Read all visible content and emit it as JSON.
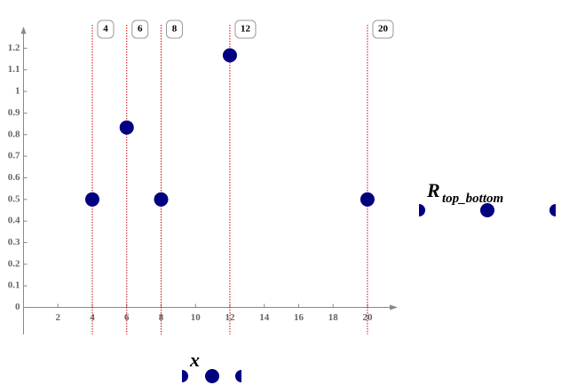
{
  "chart_data": {
    "type": "scatter",
    "xlabel": "x",
    "ylabel": {
      "base": "R",
      "subscript": "top_bottom"
    },
    "x": [
      4,
      6,
      8,
      12,
      20
    ],
    "series": [
      {
        "name": "R_top_bottom",
        "color": "#000080",
        "values": [
          0.5,
          0.833,
          0.5,
          1.167,
          0.5
        ]
      }
    ],
    "xlim": [
      0,
      21.5
    ],
    "ylim": [
      -0.125,
      1.3
    ],
    "xticks": [
      2,
      4,
      6,
      8,
      10,
      12,
      14,
      16,
      18,
      20
    ],
    "yticks": [
      0,
      0.1,
      0.2,
      0.3,
      0.4,
      0.5,
      0.6,
      0.7,
      0.8,
      0.9,
      1,
      1.1,
      1.2
    ],
    "markers": {
      "color": "#cc0000",
      "values": [
        4,
        6,
        8,
        12,
        20
      ]
    }
  }
}
